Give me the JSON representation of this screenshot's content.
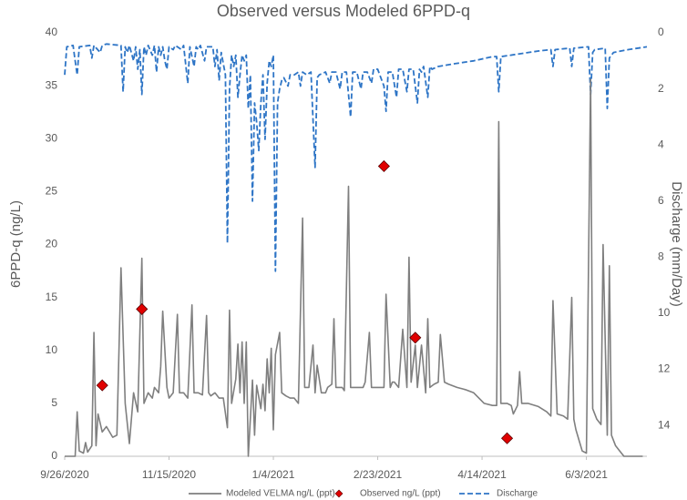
{
  "chart_data": {
    "type": "line",
    "title": "Observed versus Modeled 6PPD-q",
    "y_label": "6PPD-q (ng/L)",
    "y2_label": "Discharge (mm/Day)",
    "xlim": [
      "9/26/2020",
      "7/2/2021"
    ],
    "xticks": [
      "9/26/2020",
      "11/15/2020",
      "1/4/2021",
      "2/23/2021",
      "4/14/2021",
      "6/3/2021"
    ],
    "ylim": [
      0,
      40
    ],
    "yticks": [
      0,
      5,
      10,
      15,
      20,
      25,
      30,
      35,
      40
    ],
    "y2lim": [
      0,
      15.1
    ],
    "y2ticks": [
      0,
      2,
      4,
      6,
      8,
      10,
      12,
      14
    ],
    "y2_inverted": true,
    "grid": false,
    "legend": "bottom",
    "series": [
      {
        "name": "Modeled VELMA ng/L (ppt)",
        "type": "line",
        "color": "#7f7f7f",
        "dash": false,
        "axis": "y",
        "x": [
          "9/26/2020",
          "10/1/2020",
          "10/2/2020",
          "10/3/2020",
          "10/5/2020",
          "10/6/2020",
          "10/7/2020",
          "10/9/2020",
          "10/10/2020",
          "10/11/2020",
          "10/12/2020",
          "10/14/2020",
          "10/16/2020",
          "10/19/2020",
          "10/21/2020",
          "10/23/2020",
          "10/25/2020",
          "10/27/2020",
          "10/29/2020",
          "10/31/2020",
          "11/2/2020",
          "11/3/2020",
          "11/5/2020",
          "11/7/2020",
          "11/8/2020",
          "11/10/2020",
          "11/11/2020",
          "11/12/2020",
          "11/14/2020",
          "11/15/2020",
          "11/17/2020",
          "11/19/2020",
          "11/20/2020",
          "11/22/2020",
          "11/24/2020",
          "11/26/2020",
          "11/27/2020",
          "11/29/2020",
          "12/1/2020",
          "12/3/2020",
          "12/4/2020",
          "12/5/2020",
          "12/7/2020",
          "12/9/2020",
          "12/11/2020",
          "12/13/2020",
          "12/14/2020",
          "12/15/2020",
          "12/17/2020",
          "12/18/2020",
          "12/19/2020",
          "12/20/2020",
          "12/21/2020",
          "12/22/2020",
          "12/23/2020",
          "12/25/2020",
          "12/26/2020",
          "12/27/2020",
          "12/29/2020",
          "12/30/2020",
          "12/31/2020",
          "1/1/2021",
          "1/2/2021",
          "1/3/2021",
          "1/4/2021",
          "1/5/2021",
          "1/7/2021",
          "1/8/2021",
          "1/10/2021",
          "1/12/2021",
          "1/14/2021",
          "1/16/2021",
          "1/18/2021",
          "1/19/2021",
          "1/21/2021",
          "1/23/2021",
          "1/24/2021",
          "1/25/2021",
          "1/27/2021",
          "1/29/2021",
          "1/30/2021",
          "2/1/2021",
          "2/2/2021",
          "2/3/2021",
          "2/6/2021",
          "2/7/2021",
          "2/9/2021",
          "2/10/2021",
          "2/12/2021",
          "2/14/2021",
          "2/16/2021",
          "2/17/2021",
          "2/19/2021",
          "2/20/2021",
          "2/22/2021",
          "2/24/2021",
          "2/26/2021",
          "2/27/2021",
          "3/1/2021",
          "3/2/2021",
          "3/3/2021",
          "3/5/2021",
          "3/7/2021",
          "3/9/2021",
          "3/10/2021",
          "3/11/2021",
          "3/13/2021",
          "3/14/2021",
          "3/16/2021",
          "3/18/2021",
          "3/19/2021",
          "3/20/2021",
          "3/22/2021",
          "3/24/2021",
          "3/25/2021",
          "3/27/2021",
          "3/29/2021",
          "4/2/2021",
          "4/6/2021",
          "4/10/2021",
          "4/15/2021",
          "4/19/2021",
          "4/21/2021",
          "4/22/2021",
          "4/23/2021",
          "4/26/2021",
          "4/28/2021",
          "4/29/2021",
          "5/1/2021",
          "5/2/2021",
          "5/3/2021",
          "5/6/2021",
          "5/11/2021",
          "5/15/2021",
          "5/17/2021",
          "5/18/2021",
          "5/20/2021",
          "5/23/2021",
          "5/25/2021",
          "5/27/2021",
          "5/28/2021",
          "5/29/2021",
          "6/1/2021",
          "6/3/2021",
          "6/5/2021",
          "6/6/2021",
          "6/8/2021",
          "6/10/2021",
          "6/11/2021",
          "6/13/2021",
          "6/14/2021",
          "6/15/2021",
          "6/17/2021",
          "6/19/2021",
          "6/21/2021",
          "6/30/2021"
        ],
        "values": [
          0,
          0,
          4.2,
          0.5,
          0.3,
          1.3,
          0.4,
          1,
          11.7,
          1,
          4,
          2.3,
          2.8,
          1.8,
          2,
          17.8,
          5,
          1.2,
          6,
          4.2,
          18.7,
          5,
          6,
          5.5,
          6.5,
          6,
          8.5,
          13.7,
          6.5,
          5.5,
          6,
          13.4,
          6,
          6,
          5.5,
          14.3,
          6,
          6,
          5.8,
          13.3,
          6,
          5.7,
          6,
          5.5,
          5.5,
          2.7,
          13.8,
          5,
          7.3,
          10.6,
          6,
          10.8,
          5,
          10.8,
          0,
          7.2,
          2,
          6.7,
          4.5,
          6.8,
          4.3,
          9.2,
          6,
          10.2,
          2.5,
          9.6,
          11.7,
          6,
          5.7,
          5.5,
          5.5,
          5,
          22.5,
          6.5,
          6.5,
          10.5,
          6,
          8.6,
          6,
          6,
          6.5,
          6.8,
          13,
          6.5,
          6.5,
          6.2,
          25.5,
          6.5,
          6.5,
          6.5,
          6.5,
          7,
          11.7,
          6.5,
          6.5,
          6.5,
          6.5,
          15.3,
          6.5,
          7,
          7,
          6.5,
          12,
          6.5,
          18.8,
          7,
          10.5,
          6.5,
          10.5,
          6,
          13,
          6.5,
          6.8,
          7,
          11.5,
          7,
          6.8,
          6.5,
          6.3,
          6,
          5,
          4.8,
          4.8,
          31.6,
          5,
          5,
          4.8,
          4,
          4.8,
          8,
          5,
          5,
          4.7,
          4.2,
          3.8,
          14.7,
          4,
          3.8,
          3.5,
          15,
          3.5,
          2.5,
          0.5,
          0.3,
          35.6,
          4.5,
          3.5,
          3,
          20,
          2,
          18,
          2,
          1,
          0.5,
          0,
          0
        ]
      },
      {
        "name": "Observed ng/L (ppt)",
        "type": "scatter",
        "color": "#e00000",
        "axis": "y",
        "x": [
          "10/14/2020",
          "11/2/2020",
          "2/26/2021",
          "3/13/2021",
          "4/26/2021"
        ],
        "values": [
          6.7,
          13.9,
          27.4,
          11.2,
          1.7
        ]
      },
      {
        "name": "Discharge",
        "type": "line",
        "color": "#2e75c6",
        "dash": true,
        "axis": "y2",
        "x": [
          "9/26/2020",
          "9/27/2020",
          "9/30/2020",
          "10/1/2020",
          "10/2/2020",
          "10/3/2020",
          "10/8/2020",
          "10/9/2020",
          "10/10/2020",
          "10/13/2020",
          "10/14/2020",
          "10/16/2020",
          "10/23/2020",
          "10/24/2020",
          "10/25/2020",
          "10/26/2020",
          "10/27/2020",
          "10/29/2020",
          "10/30/2020",
          "10/31/2020",
          "11/1/2020",
          "11/2/2020",
          "11/3/2020",
          "11/4/2020",
          "11/5/2020",
          "11/7/2020",
          "11/8/2020",
          "11/9/2020",
          "11/10/2020",
          "11/11/2020",
          "11/12/2020",
          "11/13/2020",
          "11/14/2020",
          "11/15/2020",
          "11/17/2020",
          "11/18/2020",
          "11/21/2020",
          "11/22/2020",
          "11/24/2020",
          "11/25/2020",
          "11/27/2020",
          "11/28/2020",
          "11/29/2020",
          "11/30/2020",
          "12/2/2020",
          "12/3/2020",
          "12/4/2020",
          "12/6/2020",
          "12/7/2020",
          "12/8/2020",
          "12/9/2020",
          "12/10/2020",
          "12/12/2020",
          "12/13/2020",
          "12/14/2020",
          "12/15/2020",
          "12/16/2020",
          "12/17/2020",
          "12/18/2020",
          "12/19/2020",
          "12/20/2020",
          "12/21/2020",
          "12/22/2020",
          "12/23/2020",
          "12/24/2020",
          "12/25/2020",
          "12/26/2020",
          "12/27/2020",
          "12/28/2020",
          "12/29/2020",
          "12/30/2020",
          "12/31/2020",
          "1/1/2021",
          "1/2/2021",
          "1/3/2021",
          "1/4/2021",
          "1/5/2021",
          "1/6/2021",
          "1/7/2021",
          "1/8/2021",
          "1/9/2021",
          "1/11/2021",
          "1/12/2021",
          "1/14/2021",
          "1/16/2021",
          "1/17/2021",
          "1/18/2021",
          "1/20/2021",
          "1/22/2021",
          "1/24/2021",
          "1/25/2021",
          "1/26/2021",
          "1/29/2021",
          "1/31/2021",
          "2/1/2021",
          "2/3/2021",
          "2/5/2021",
          "2/6/2021",
          "2/8/2021",
          "2/10/2021",
          "2/11/2021",
          "2/13/2021",
          "2/15/2021",
          "2/16/2021",
          "2/18/2021",
          "2/20/2021",
          "2/21/2021",
          "2/23/2021",
          "2/26/2021",
          "2/27/2021",
          "2/28/2021",
          "3/2/2021",
          "3/4/2021",
          "3/5/2021",
          "3/7/2021",
          "3/9/2021",
          "3/10/2021",
          "3/12/2021",
          "3/14/2021",
          "3/15/2021",
          "3/16/2021",
          "3/17/2021",
          "3/19/2021",
          "3/20/2021",
          "3/21/2021",
          "3/24/2021",
          "4/1/2021",
          "4/10/2021",
          "4/19/2021",
          "4/21/2021",
          "4/22/2021",
          "4/23/2021",
          "5/2/2021",
          "5/11/2021",
          "5/17/2021",
          "5/18/2021",
          "5/19/2021",
          "5/26/2021",
          "5/27/2021",
          "5/28/2021",
          "6/4/2021",
          "6/5/2021",
          "6/6/2021",
          "6/7/2021",
          "6/12/2021",
          "6/13/2021",
          "6/14/2021",
          "6/16/2021",
          "6/23/2021",
          "7/2/2021"
        ],
        "values": [
          1.5,
          0.5,
          0.45,
          1.0,
          1.5,
          0.5,
          0.45,
          0.9,
          0.45,
          0.7,
          0.45,
          0.4,
          0.45,
          2.1,
          0.5,
          0.7,
          0.45,
          1.0,
          0.5,
          1.3,
          0.6,
          2.2,
          0.5,
          0.8,
          0.45,
          0.8,
          0.45,
          1.4,
          0.5,
          0.8,
          0.5,
          1.0,
          1.3,
          0.5,
          0.6,
          0.45,
          0.6,
          0.45,
          1.8,
          0.5,
          1.2,
          0.5,
          0.6,
          0.45,
          1.0,
          0.5,
          0.5,
          0.5,
          1.2,
          0.6,
          1.7,
          0.7,
          1.5,
          7.5,
          2.0,
          0.8,
          1.2,
          0.8,
          2.3,
          1.5,
          0.8,
          1.0,
          0.8,
          2.7,
          1.5,
          6.0,
          2.5,
          3.2,
          4.2,
          2.5,
          1.5,
          3.8,
          1.8,
          1.0,
          1.2,
          0.8,
          8.5,
          2.5,
          2.0,
          1.7,
          1.6,
          1.9,
          1.5,
          1.5,
          1.4,
          1.9,
          1.4,
          1.5,
          1.4,
          4.8,
          1.6,
          1.5,
          1.4,
          1.8,
          1.4,
          1.4,
          2.0,
          1.4,
          1.4,
          3.0,
          1.4,
          1.4,
          2.0,
          1.4,
          1.4,
          1.8,
          1.3,
          1.3,
          1.9,
          2.8,
          1.4,
          1.4,
          2.3,
          1.3,
          1.3,
          2.1,
          1.3,
          1.3,
          2.5,
          1.3,
          1.4,
          1.2,
          2.3,
          1.2,
          1.3,
          1.2,
          1.1,
          1.0,
          0.85,
          0.85,
          2.1,
          0.85,
          0.75,
          0.65,
          0.6,
          1.2,
          0.6,
          0.55,
          1.2,
          0.55,
          0.5,
          2.2,
          0.7,
          0.6,
          0.55,
          2.7,
          0.9,
          0.7,
          0.6,
          0.5
        ]
      }
    ]
  }
}
